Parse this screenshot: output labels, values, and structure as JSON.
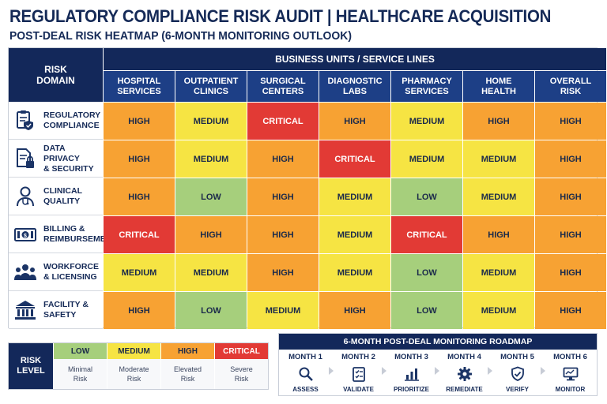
{
  "title": "REGULATORY COMPLIANCE RISK AUDIT | HEALTHCARE ACQUISITION",
  "subtitle": "POST-DEAL RISK HEATMAP (6-MONTH MONITORING OUTLOOK)",
  "colors": {
    "navy": "#13285a",
    "header_blue": "#1d3f86",
    "low": "#a6cf7c",
    "medium": "#f6e443",
    "high": "#f7a233",
    "critical": "#e23a35"
  },
  "chart_data": {
    "type": "heatmap",
    "corner_label": "RISK\nDOMAIN",
    "column_group_label": "BUSINESS UNITS / SERVICE LINES",
    "columns": [
      "HOSPITAL\nSERVICES",
      "OUTPATIENT\nCLINICS",
      "SURGICAL\nCENTERS",
      "DIAGNOSTIC\nLABS",
      "PHARMACY\nSERVICES",
      "HOME\nHEALTH",
      "OVERALL\nRISK"
    ],
    "rows": [
      {
        "label": "REGULATORY\nCOMPLIANCE",
        "icon": "clipboard-shield-icon",
        "values": [
          "HIGH",
          "MEDIUM",
          "CRITICAL",
          "HIGH",
          "MEDIUM",
          "HIGH",
          "HIGH"
        ]
      },
      {
        "label": "DATA PRIVACY\n& SECURITY",
        "icon": "document-lock-icon",
        "values": [
          "HIGH",
          "MEDIUM",
          "HIGH",
          "CRITICAL",
          "MEDIUM",
          "MEDIUM",
          "HIGH"
        ]
      },
      {
        "label": "CLINICAL\nQUALITY",
        "icon": "doctor-icon",
        "values": [
          "HIGH",
          "LOW",
          "HIGH",
          "MEDIUM",
          "LOW",
          "MEDIUM",
          "HIGH"
        ]
      },
      {
        "label": "BILLING &\nREIMBURSEMENT",
        "icon": "cash-icon",
        "values": [
          "CRITICAL",
          "HIGH",
          "HIGH",
          "MEDIUM",
          "CRITICAL",
          "HIGH",
          "HIGH"
        ]
      },
      {
        "label": "WORKFORCE\n& LICENSING",
        "icon": "people-icon",
        "values": [
          "MEDIUM",
          "MEDIUM",
          "HIGH",
          "MEDIUM",
          "LOW",
          "MEDIUM",
          "HIGH"
        ]
      },
      {
        "label": "FACILITY &\nSAFETY",
        "icon": "building-icon",
        "values": [
          "HIGH",
          "LOW",
          "MEDIUM",
          "HIGH",
          "LOW",
          "MEDIUM",
          "HIGH"
        ]
      }
    ],
    "levels": [
      "LOW",
      "MEDIUM",
      "HIGH",
      "CRITICAL"
    ]
  },
  "legend": {
    "title": "RISK\nLEVEL",
    "items": [
      {
        "label": "LOW",
        "description": "Minimal\nRisk",
        "level": "low"
      },
      {
        "label": "MEDIUM",
        "description": "Moderate\nRisk",
        "level": "medium"
      },
      {
        "label": "HIGH",
        "description": "Elevated\nRisk",
        "level": "high"
      },
      {
        "label": "CRITICAL",
        "description": "Severe\nRisk",
        "level": "critical"
      }
    ]
  },
  "roadmap": {
    "title": "6-MONTH POST-DEAL MONITORING ROADMAP",
    "steps": [
      {
        "month": "MONTH 1",
        "action": "ASSESS",
        "icon": "magnifier-icon"
      },
      {
        "month": "MONTH 2",
        "action": "VALIDATE",
        "icon": "checklist-icon"
      },
      {
        "month": "MONTH 3",
        "action": "PRIORITIZE",
        "icon": "bar-chart-icon"
      },
      {
        "month": "MONTH 4",
        "action": "REMEDIATE",
        "icon": "gear-icon"
      },
      {
        "month": "MONTH 5",
        "action": "VERIFY",
        "icon": "shield-check-icon"
      },
      {
        "month": "MONTH 6",
        "action": "MONITOR",
        "icon": "monitor-icon"
      }
    ]
  }
}
